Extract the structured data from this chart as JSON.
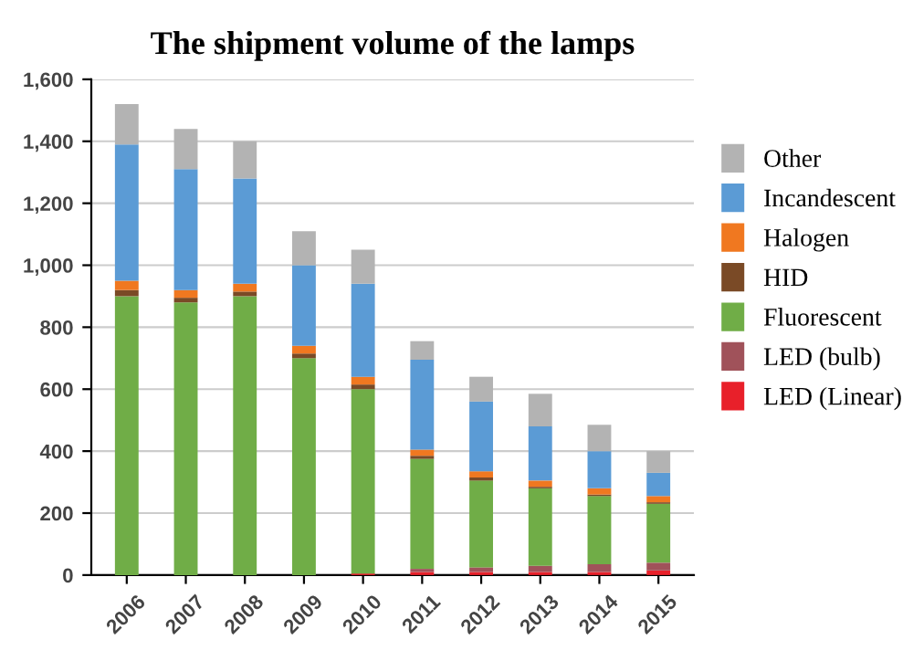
{
  "chart_data": {
    "type": "bar",
    "title": "The shipment volume of the lamps",
    "stacked": true,
    "categories": [
      "2006",
      "2007",
      "2008",
      "2009",
      "2010",
      "2011",
      "2012",
      "2013",
      "2014",
      "2015"
    ],
    "series": [
      {
        "name": "LED (Linear)",
        "color": "#e8202a",
        "values": [
          0,
          0,
          0,
          0,
          5,
          10,
          10,
          10,
          10,
          15
        ]
      },
      {
        "name": "LED (bulb)",
        "color": "#a0525a",
        "values": [
          0,
          0,
          0,
          0,
          0,
          10,
          15,
          20,
          25,
          25
        ]
      },
      {
        "name": "Fluorescent",
        "color": "#70ad47",
        "values": [
          900,
          880,
          900,
          700,
          595,
          355,
          280,
          250,
          220,
          190
        ]
      },
      {
        "name": "HID",
        "color": "#7a4a26",
        "values": [
          20,
          15,
          15,
          15,
          15,
          10,
          10,
          5,
          5,
          5
        ]
      },
      {
        "name": "Halogen",
        "color": "#f07820",
        "values": [
          30,
          25,
          25,
          25,
          25,
          20,
          20,
          20,
          20,
          20
        ]
      },
      {
        "name": "Incandescent",
        "color": "#5b9bd5",
        "values": [
          440,
          390,
          340,
          260,
          300,
          290,
          225,
          175,
          120,
          75
        ]
      },
      {
        "name": "Other",
        "color": "#b3b3b3",
        "values": [
          130,
          130,
          120,
          110,
          110,
          60,
          80,
          105,
          85,
          70
        ]
      }
    ],
    "ylim": [
      0,
      1600
    ],
    "yticks": [
      0,
      200,
      400,
      600,
      800,
      {
        "value": 1000,
        "label": "1,000"
      },
      {
        "value": 1200,
        "label": "1,200"
      },
      {
        "value": 1400,
        "label": "1,400"
      },
      {
        "value": 1600,
        "label": "1,600"
      }
    ],
    "grid": "y",
    "legend": "right"
  }
}
